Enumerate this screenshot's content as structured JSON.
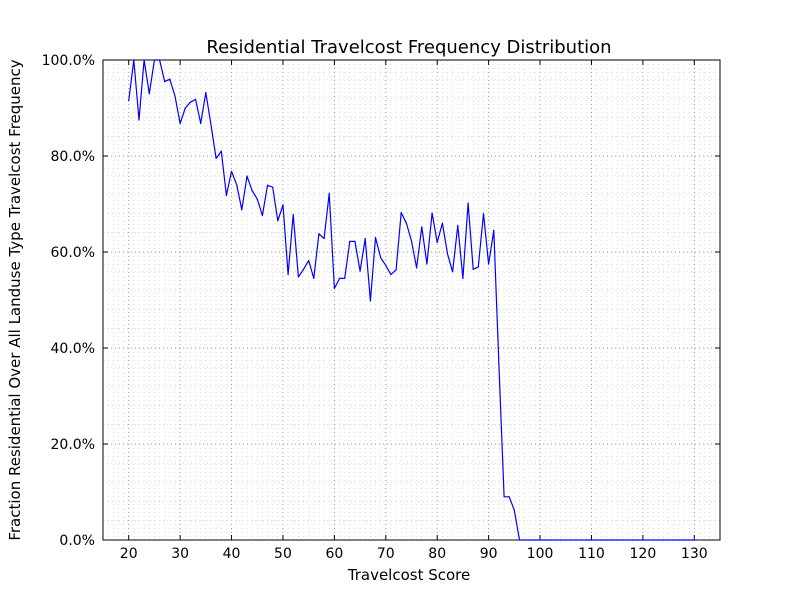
{
  "chart_data": {
    "type": "line",
    "title": "Residential Travelcost Frequency Distribution",
    "xlabel": "Travelcost Score",
    "ylabel": "Fraction Residential Over All Landuse Type Travelcost Frequency",
    "xlim": [
      15,
      135
    ],
    "ylim": [
      0,
      100
    ],
    "x_ticks": [
      20,
      30,
      40,
      50,
      60,
      70,
      80,
      90,
      100,
      110,
      120,
      130
    ],
    "x_tick_labels": [
      "20",
      "30",
      "40",
      "50",
      "60",
      "70",
      "80",
      "90",
      "100",
      "110",
      "120",
      "130"
    ],
    "y_ticks": [
      0,
      20,
      40,
      60,
      80,
      100
    ],
    "y_tick_labels": [
      "0.0%",
      "20.0%",
      "40.0%",
      "60.0%",
      "80.0%",
      "100.0%"
    ],
    "grid": true,
    "grid_style": "dotted, major and minor",
    "series_color": "#0000ff",
    "series": [
      {
        "x": [
          20,
          21,
          22,
          23,
          24,
          25,
          26,
          27,
          28,
          29,
          30,
          31,
          32,
          33,
          34,
          35,
          36,
          37,
          38,
          39,
          40,
          41,
          42,
          43,
          44,
          45,
          46,
          47,
          48,
          49,
          50,
          51,
          52,
          53,
          54,
          55,
          56,
          57,
          58,
          59,
          60,
          61,
          62,
          63,
          64,
          65,
          66,
          67,
          68,
          69,
          70,
          71,
          72,
          73,
          74,
          75,
          76,
          77,
          78,
          79,
          80,
          81,
          82,
          83,
          84,
          85,
          86,
          87,
          88,
          89,
          90,
          91,
          92,
          93,
          94,
          95,
          96,
          97,
          98,
          99,
          100,
          101,
          102,
          103,
          104,
          105,
          106,
          107,
          108,
          109,
          110,
          111,
          112,
          113,
          114,
          115,
          116,
          117,
          118,
          119,
          120,
          121,
          122,
          123,
          124,
          125,
          126,
          127,
          128,
          129,
          130
        ],
        "values": [
          91.5,
          100,
          87.5,
          100,
          93,
          100,
          100,
          95.5,
          96,
          92.5,
          86.8,
          90,
          91.2,
          91.8,
          86.8,
          93.2,
          86.5,
          79.5,
          81,
          71.8,
          76.8,
          74,
          68.8,
          75.8,
          72.8,
          71,
          67.6,
          73.9,
          73.5,
          66.5,
          69.8,
          55.3,
          67.8,
          54.8,
          56.4,
          58.2,
          54.5,
          63.8,
          62.8,
          72.2,
          52.4,
          54.5,
          54.5,
          62.2,
          62.2,
          56,
          62.8,
          49.8,
          63,
          58.8,
          57.2,
          55.3,
          56.3,
          68.2,
          66,
          62.3,
          56.7,
          65.2,
          57.5,
          68.1,
          62,
          66,
          59.6,
          55.9,
          65.5,
          54.5,
          70.2,
          56.4,
          56.9,
          68,
          57.5,
          64.5,
          36.6,
          9,
          9,
          6.2,
          0,
          0,
          0,
          0,
          0,
          0,
          0,
          0,
          0,
          0,
          0,
          0,
          0,
          0,
          0,
          0,
          0,
          0,
          0,
          0,
          0,
          0,
          0,
          0,
          0,
          0,
          0,
          0,
          0,
          0,
          0,
          0,
          0,
          0,
          0
        ]
      }
    ]
  }
}
